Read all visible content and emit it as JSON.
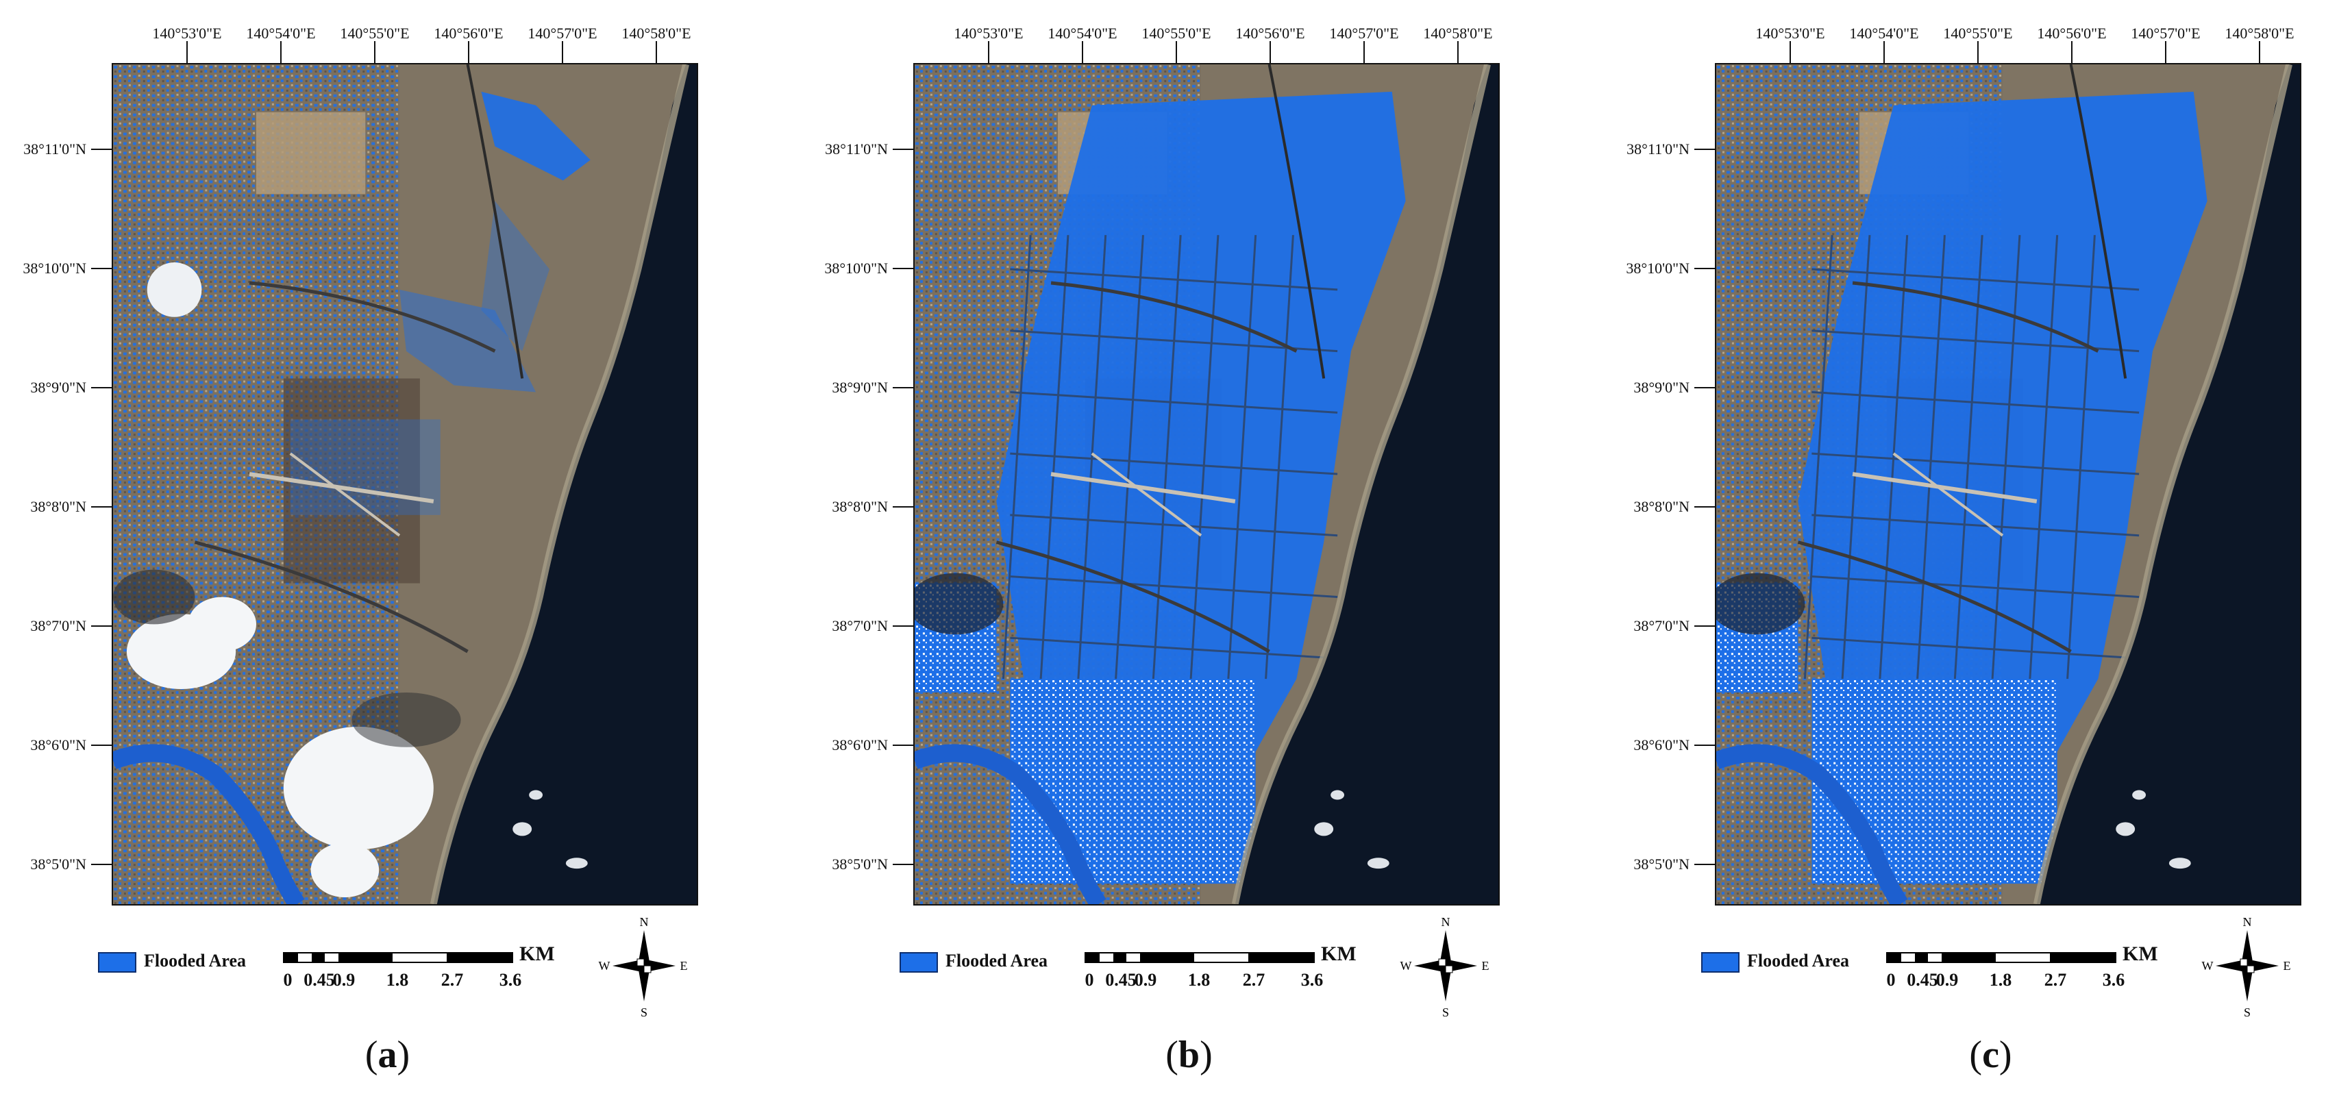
{
  "colors": {
    "flood_blue": "#1d6fe8",
    "sea": "#0c1626",
    "land": "#7f7463",
    "cloud": "#f4f6f8"
  },
  "map": {
    "lon_labels": [
      "140°53'0\"E",
      "140°54'0\"E",
      "140°55'0\"E",
      "140°56'0\"E",
      "140°57'0\"E",
      "140°58'0\"E"
    ],
    "lat_labels": [
      "38°11'0\"N",
      "38°10'0\"N",
      "38°9'0\"N",
      "38°8'0\"N",
      "38°7'0\"N",
      "38°6'0\"N",
      "38°5'0\"N"
    ]
  },
  "legend": {
    "flood_label": "Flooded Area"
  },
  "scalebar": {
    "unit": "KM",
    "labels": [
      "0",
      "0.45",
      "0.9",
      "1.8",
      "2.7",
      "3.6"
    ]
  },
  "compass": {
    "n": "N",
    "s": "S",
    "e": "E",
    "w": "W"
  },
  "panels": [
    {
      "id": "a",
      "caption_open": "(",
      "caption_letter": "a",
      "caption_close": ")"
    },
    {
      "id": "b",
      "caption_open": "(",
      "caption_letter": "b",
      "caption_close": ")"
    },
    {
      "id": "c",
      "caption_open": "(",
      "caption_letter": "c",
      "caption_close": ")"
    }
  ]
}
